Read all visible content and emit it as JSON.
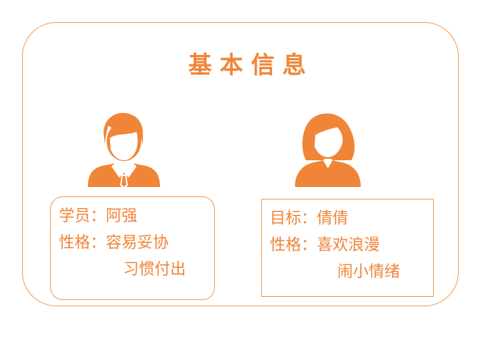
{
  "title": "基本信息",
  "accent_color": "#f08538",
  "icons": {
    "left": "male-student-icon",
    "right": "female-target-icon"
  },
  "student": {
    "line1_label": "学员：",
    "line1_value": "阿强",
    "line2_label": "性格：",
    "line2_value": "容易妥协",
    "line3_value": "习惯付出"
  },
  "target": {
    "line1_label": "目标：",
    "line1_value": "倩倩",
    "line2_label": "性格：",
    "line2_value": "喜欢浪漫",
    "line3_value": "闹小情绪"
  }
}
